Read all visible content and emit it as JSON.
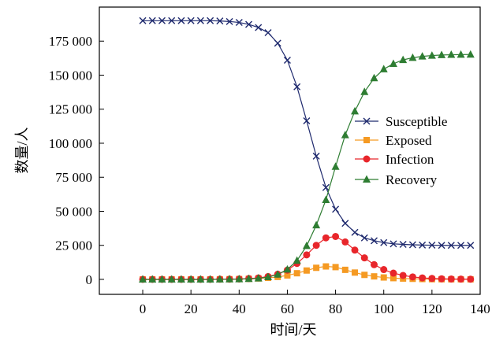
{
  "chart_data": {
    "type": "line",
    "title": "",
    "xlabel": "时间/天",
    "ylabel": "数量/人",
    "xlim": [
      -18,
      140
    ],
    "ylim": [
      -11000,
      200000
    ],
    "xticks": [
      0,
      20,
      40,
      60,
      80,
      100,
      120,
      140
    ],
    "xtick_labels": [
      "0",
      "20",
      "40",
      "60",
      "80",
      "100",
      "120",
      "140"
    ],
    "yticks": [
      0,
      25000,
      50000,
      75000,
      100000,
      125000,
      150000,
      175000
    ],
    "ytick_labels": [
      "0",
      "25 000",
      "50 000",
      "75 000",
      "100 000",
      "125 000",
      "150 000",
      "175 000"
    ],
    "grid": false,
    "legend_position": "center-right",
    "x": [
      0,
      4,
      8,
      12,
      16,
      20,
      24,
      28,
      32,
      36,
      40,
      44,
      48,
      52,
      56,
      60,
      64,
      68,
      72,
      76,
      80,
      84,
      88,
      92,
      96,
      100,
      104,
      108,
      112,
      116,
      120,
      124,
      128,
      132,
      136
    ],
    "series": [
      {
        "name": "Susceptible",
        "color": "#1f2a6e",
        "marker": "x",
        "values": [
          190000,
          190000,
          190000,
          190000,
          190000,
          190000,
          190000,
          190000,
          189800,
          189400,
          188700,
          187300,
          185000,
          181200,
          173500,
          161000,
          141500,
          116500,
          90500,
          67500,
          51500,
          41200,
          34500,
          30500,
          28400,
          27000,
          26100,
          25700,
          25400,
          25200,
          25100,
          25000,
          25000,
          25000,
          25000
        ]
      },
      {
        "name": "Exposed",
        "color": "#f59a23",
        "marker": "square",
        "values": [
          0,
          0,
          0,
          0,
          0,
          0,
          0,
          0,
          80,
          150,
          250,
          400,
          700,
          1100,
          1800,
          2900,
          4500,
          6500,
          8500,
          9500,
          9000,
          7000,
          5000,
          3300,
          2200,
          1400,
          900,
          600,
          400,
          250,
          150,
          100,
          60,
          40,
          30
        ]
      },
      {
        "name": "Infection",
        "color": "#e8262b",
        "marker": "circle",
        "values": [
          0,
          0,
          0,
          0,
          0,
          0,
          0,
          0,
          100,
          150,
          300,
          600,
          1100,
          2100,
          3800,
          6800,
          11700,
          18000,
          25000,
          30500,
          31500,
          27500,
          21500,
          15800,
          10800,
          7200,
          4600,
          2900,
          1800,
          1100,
          700,
          450,
          300,
          200,
          130
        ]
      },
      {
        "name": "Recovery",
        "color": "#2e7d32",
        "marker": "triangle",
        "values": [
          0,
          0,
          0,
          0,
          0,
          0,
          0,
          0,
          50,
          100,
          200,
          400,
          800,
          1700,
          3600,
          7300,
          13800,
          24600,
          39800,
          58400,
          82800,
          106000,
          123500,
          137700,
          147800,
          154400,
          158400,
          161200,
          162800,
          163800,
          164400,
          164800,
          165000,
          165100,
          165200
        ]
      }
    ]
  }
}
